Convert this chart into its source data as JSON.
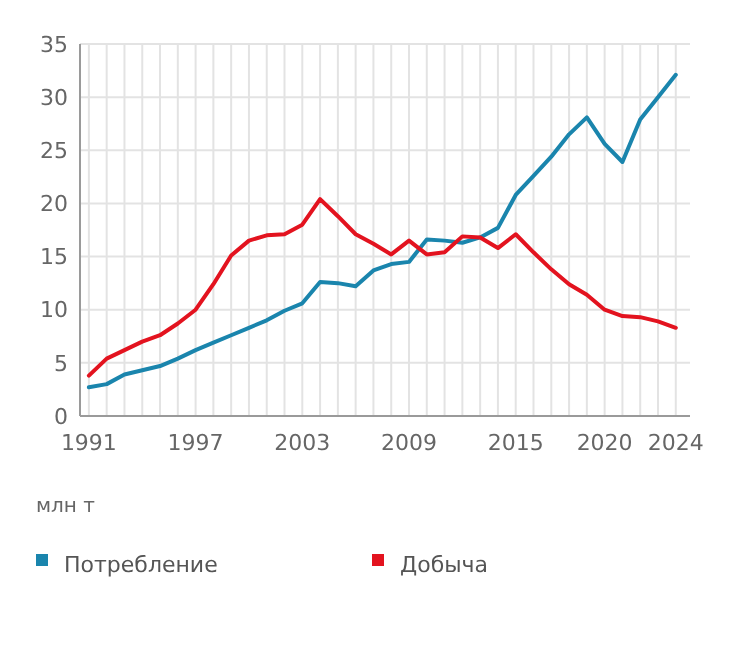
{
  "chart_data": {
    "type": "line",
    "ylabel": "млн т",
    "x": [
      1991,
      1992,
      1993,
      1994,
      1995,
      1996,
      1997,
      1998,
      1999,
      2000,
      2001,
      2002,
      2003,
      2004,
      2005,
      2006,
      2007,
      2008,
      2009,
      2010,
      2011,
      2012,
      2013,
      2014,
      2015,
      2016,
      2017,
      2018,
      2019,
      2020,
      2021,
      2022,
      2023,
      2024
    ],
    "series": [
      {
        "name": "Потребление",
        "color": "#1a85ad",
        "values": [
          2.7,
          3.0,
          3.9,
          4.3,
          4.7,
          5.4,
          6.2,
          6.9,
          7.6,
          8.3,
          9.0,
          9.9,
          10.6,
          12.6,
          12.5,
          12.2,
          13.7,
          14.3,
          14.5,
          16.6,
          16.5,
          16.3,
          16.8,
          17.7,
          20.8,
          22.6,
          24.4,
          26.5,
          28.1,
          25.6,
          23.9,
          27.9,
          30.0,
          32.1
        ]
      },
      {
        "name": "Добыча",
        "color": "#e3131f",
        "values": [
          3.8,
          5.4,
          6.2,
          7.0,
          7.6,
          8.7,
          10.0,
          12.4,
          15.1,
          16.5,
          17.0,
          17.1,
          18.0,
          20.4,
          18.8,
          17.1,
          16.2,
          15.2,
          16.5,
          15.2,
          15.4,
          16.9,
          16.8,
          15.8,
          17.1,
          15.4,
          13.8,
          12.4,
          11.4,
          10.0,
          9.4,
          9.3,
          8.9,
          8.3
        ]
      }
    ],
    "xlim": [
      1990.5,
      2024.8
    ],
    "xticks": [
      1991,
      {
        "value": 1992,
        "label": null
      },
      {
        "value": 1993,
        "label": null
      },
      {
        "value": 1994,
        "label": null
      },
      {
        "value": 1995,
        "label": null
      },
      {
        "value": 1996,
        "label": null
      },
      1997,
      {
        "value": 1998,
        "label": null
      },
      {
        "value": 1999,
        "label": null
      },
      {
        "value": 2000,
        "label": null
      },
      {
        "value": 2001,
        "label": null
      },
      {
        "value": 2002,
        "label": null
      },
      2003,
      {
        "value": 2004,
        "label": null
      },
      {
        "value": 2005,
        "label": null
      },
      {
        "value": 2006,
        "label": null
      },
      {
        "value": 2007,
        "label": null
      },
      {
        "value": 2008,
        "label": null
      },
      2009,
      {
        "value": 2010,
        "label": null
      },
      {
        "value": 2011,
        "label": null
      },
      {
        "value": 2012,
        "label": null
      },
      {
        "value": 2013,
        "label": null
      },
      {
        "value": 2014,
        "label": null
      },
      2015,
      {
        "value": 2016,
        "label": null
      },
      {
        "value": 2017,
        "label": null
      },
      {
        "value": 2018,
        "label": null
      },
      {
        "value": 2019,
        "label": null
      },
      2020,
      {
        "value": 2021,
        "label": null
      },
      {
        "value": 2022,
        "label": null
      },
      {
        "value": 2023,
        "label": null
      },
      2024
    ],
    "ylim": [
      0,
      35
    ],
    "yticks": [
      0,
      5,
      10,
      15,
      20,
      25,
      30,
      35
    ],
    "grid": true,
    "legend": "bottom",
    "marker": "none",
    "line_style": "solid"
  }
}
